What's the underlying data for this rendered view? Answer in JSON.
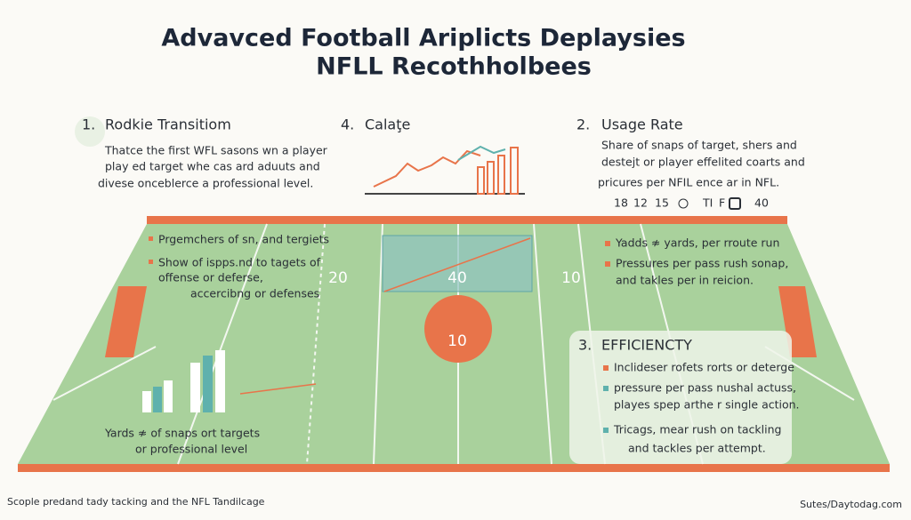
{
  "title": {
    "line1": "Advavced Football Ariplicts Deplaysies",
    "line2": "NFLL Recothholbees"
  },
  "sections": {
    "rookie": {
      "number": "1.",
      "heading": "Rodkie Transitiom",
      "lines": [
        "Thatce the first WFL sasons wn a player",
        "play ed target whe cas ard aduuts and",
        "divese onceblerce a professional level."
      ]
    },
    "calate": {
      "number": "4.",
      "heading": "Calaţe"
    },
    "usage": {
      "number": "2.",
      "heading": "Usage Rate",
      "lines": [
        "Share of snaps of target, shers and",
        "destejt or player effelited coarts and",
        "pricures per NFIL ence ar in NFL."
      ],
      "scale": [
        "18",
        "12",
        "15",
        "TI",
        "F",
        "40"
      ]
    },
    "efficiency": {
      "number": "3.",
      "heading": "EFFICIENCTY",
      "lines": [
        "Inclideser rofets rorts or deterge",
        "pressure per pass nushal actuss,",
        "playes spep arthe r single action.",
        "Tricags, mear rush on tackling",
        "and tackles per attempt."
      ]
    }
  },
  "field": {
    "left_notes": [
      "Prgemchers of sn, and tergiets",
      "Show of ispps.nd to tagets of",
      "offense or deferse,",
      "accercibng or defenses"
    ],
    "right_notes": [
      "Yadds ≉ yards,  per rroute run",
      "Pressures per pass rush sonap,",
      "and takles per in reicion."
    ],
    "yard_numbers": [
      "20",
      "40",
      "10",
      "10"
    ],
    "bottom_note": [
      "Yards ≉ of snaps ort targets",
      "or professional level"
    ]
  },
  "footer": {
    "left": "Scople predand tady tacking and the NFL Tandilcage",
    "right": "Sutes/Daytodag.com"
  }
}
